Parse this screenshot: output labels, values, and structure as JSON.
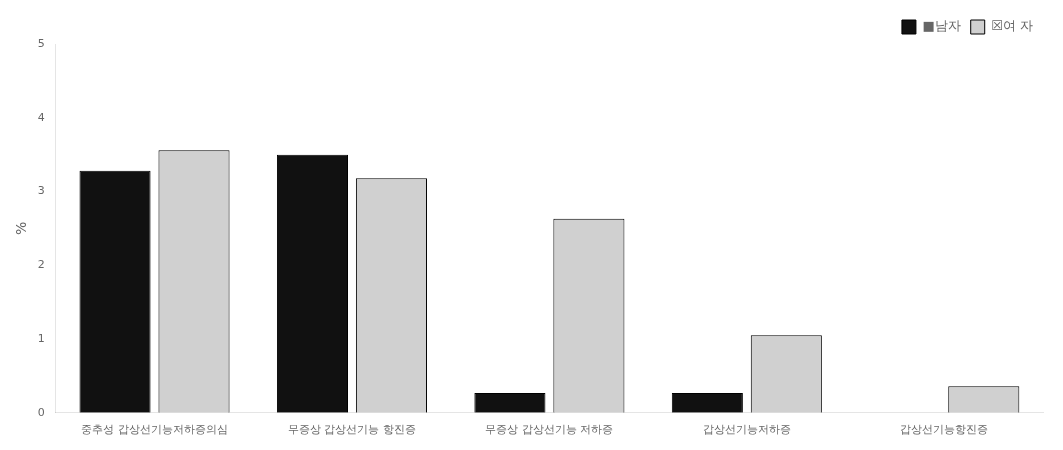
{
  "chart_data": {
    "type": "bar",
    "categories": [
      "중추성 갑상선기능저하증의심",
      "무증상 갑상선기능 항진증",
      "무증상 갑상선기능 저하증",
      "갑상선기능저하증",
      "갑상선기능항진증"
    ],
    "series": [
      {
        "name": "■남자",
        "color": "#111111",
        "values": [
          3.28,
          3.5,
          0.27,
          0.27,
          0.0
        ]
      },
      {
        "name": "☒여 자",
        "color": "#d0d0d0",
        "values": [
          3.56,
          3.18,
          2.63,
          1.05,
          0.36
        ]
      }
    ],
    "ylabel": "%",
    "ylim": [
      0,
      5
    ],
    "yticks": [
      0,
      1,
      2,
      3,
      4,
      5
    ],
    "grid": false,
    "legend": "top"
  }
}
